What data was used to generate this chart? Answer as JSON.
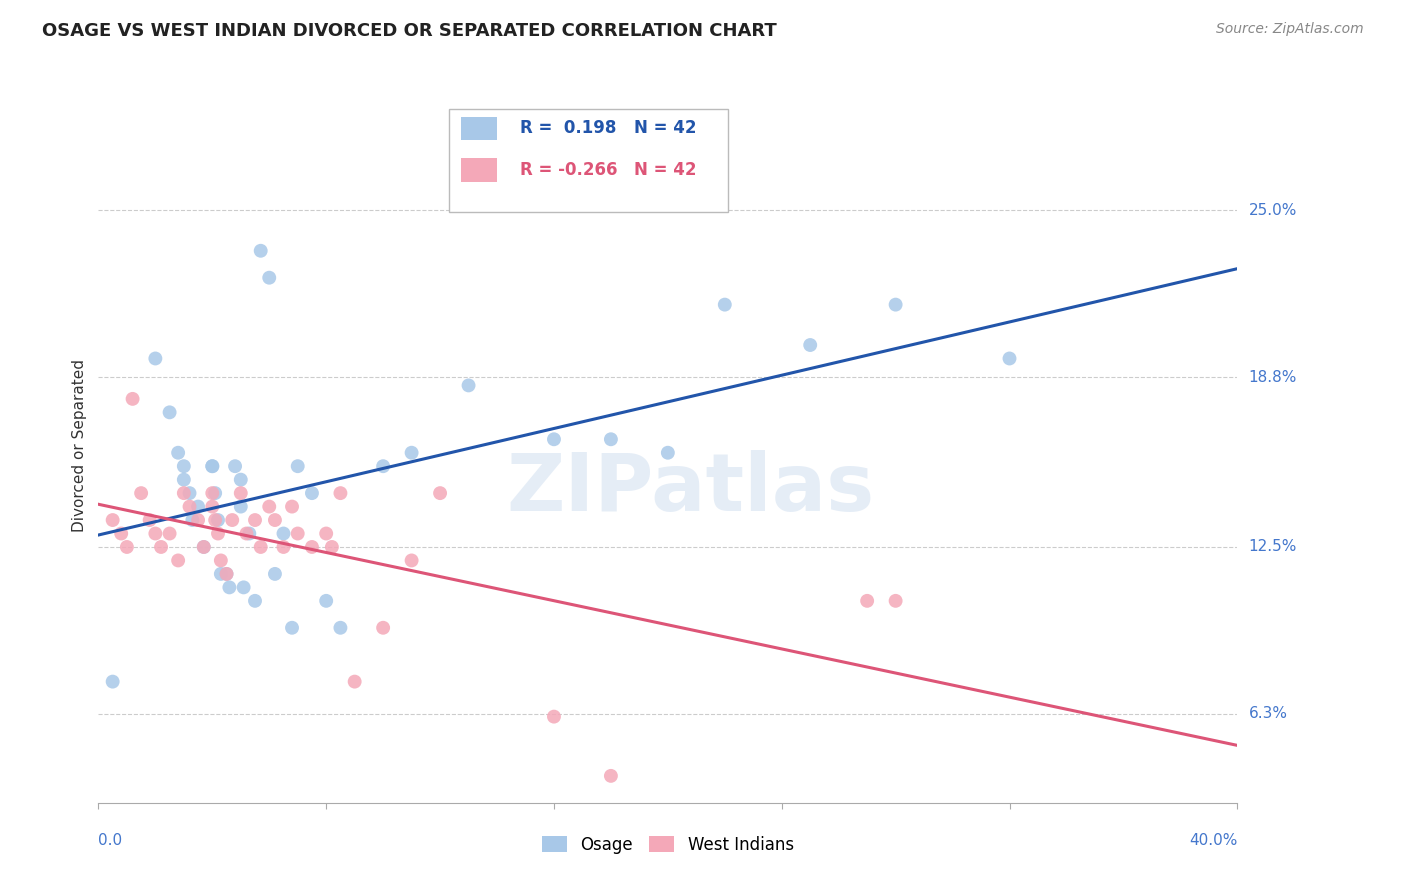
{
  "title": "OSAGE VS WEST INDIAN DIVORCED OR SEPARATED CORRELATION CHART",
  "source": "Source: ZipAtlas.com",
  "ylabel": "Divorced or Separated",
  "y_tick_labels": [
    "6.3%",
    "12.5%",
    "18.8%",
    "25.0%"
  ],
  "y_tick_vals": [
    0.063,
    0.125,
    0.188,
    0.25
  ],
  "xlim": [
    0.0,
    0.4
  ],
  "ylim": [
    0.03,
    0.295
  ],
  "r_osage": 0.198,
  "r_west_indian": -0.266,
  "n_osage": 42,
  "n_west_indian": 42,
  "osage_color": "#a8c8e8",
  "west_indian_color": "#f4a8b8",
  "osage_line_color": "#2255aa",
  "west_indian_line_color": "#dd5577",
  "background_color": "#ffffff",
  "watermark": "ZIPatlas",
  "osage_x": [
    0.005,
    0.02,
    0.025,
    0.028,
    0.03,
    0.03,
    0.032,
    0.033,
    0.035,
    0.037,
    0.04,
    0.04,
    0.041,
    0.042,
    0.043,
    0.045,
    0.046,
    0.048,
    0.05,
    0.05,
    0.051,
    0.053,
    0.055,
    0.057,
    0.06,
    0.062,
    0.065,
    0.068,
    0.07,
    0.075,
    0.08,
    0.085,
    0.1,
    0.11,
    0.13,
    0.16,
    0.18,
    0.2,
    0.22,
    0.25,
    0.28,
    0.32
  ],
  "osage_y": [
    0.075,
    0.195,
    0.175,
    0.16,
    0.155,
    0.15,
    0.145,
    0.135,
    0.14,
    0.125,
    0.155,
    0.155,
    0.145,
    0.135,
    0.115,
    0.115,
    0.11,
    0.155,
    0.15,
    0.14,
    0.11,
    0.13,
    0.105,
    0.235,
    0.225,
    0.115,
    0.13,
    0.095,
    0.155,
    0.145,
    0.105,
    0.095,
    0.155,
    0.16,
    0.185,
    0.165,
    0.165,
    0.16,
    0.215,
    0.2,
    0.215,
    0.195
  ],
  "west_indian_x": [
    0.005,
    0.008,
    0.01,
    0.012,
    0.015,
    0.018,
    0.02,
    0.022,
    0.025,
    0.028,
    0.03,
    0.032,
    0.035,
    0.037,
    0.04,
    0.04,
    0.041,
    0.042,
    0.043,
    0.045,
    0.047,
    0.05,
    0.052,
    0.055,
    0.057,
    0.06,
    0.062,
    0.065,
    0.068,
    0.07,
    0.075,
    0.08,
    0.082,
    0.085,
    0.09,
    0.1,
    0.11,
    0.12,
    0.16,
    0.18,
    0.27,
    0.28
  ],
  "west_indian_y": [
    0.135,
    0.13,
    0.125,
    0.18,
    0.145,
    0.135,
    0.13,
    0.125,
    0.13,
    0.12,
    0.145,
    0.14,
    0.135,
    0.125,
    0.145,
    0.14,
    0.135,
    0.13,
    0.12,
    0.115,
    0.135,
    0.145,
    0.13,
    0.135,
    0.125,
    0.14,
    0.135,
    0.125,
    0.14,
    0.13,
    0.125,
    0.13,
    0.125,
    0.145,
    0.075,
    0.095,
    0.12,
    0.145,
    0.062,
    0.04,
    0.105,
    0.105
  ]
}
